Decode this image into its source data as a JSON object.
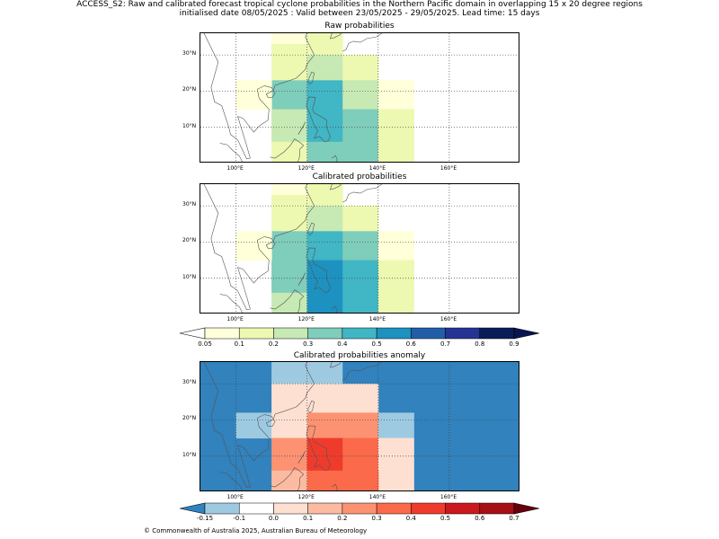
{
  "header": {
    "line1": "ACCESS_S2: Raw and calibrated forecast tropical cyclone probabilities in the Northern Pacific domain in overlapping 15 x 20 degree regions",
    "line2": "initialised date 08/05/2025 :  Valid between 23/05/2025 - 29/05/2025. Lead time: 15 days"
  },
  "footer": "© Commonwealth of Australia 2025, Australian Bureau of Meteorology",
  "chart_data": [
    {
      "type": "heatmap",
      "title": "Raw probabilities",
      "x_tick_labels": [
        "100°E",
        "120°E",
        "140°E",
        "160°E"
      ],
      "y_tick_labels": [
        "10°N",
        "20°N",
        "30°N"
      ],
      "xlim": [
        90,
        180
      ],
      "ylim": [
        0,
        36
      ],
      "cells": [
        {
          "lon": [
            110,
            120
          ],
          "lat": [
            33,
            36
          ],
          "value": 0.07
        },
        {
          "lon": [
            110,
            120
          ],
          "lat": [
            23,
            33
          ],
          "value": 0.15
        },
        {
          "lon": [
            110,
            120
          ],
          "lat": [
            15,
            23
          ],
          "value": 0.35
        },
        {
          "lon": [
            110,
            120
          ],
          "lat": [
            6,
            15
          ],
          "value": 0.25
        },
        {
          "lon": [
            110,
            120
          ],
          "lat": [
            0,
            6
          ],
          "value": 0.15
        },
        {
          "lon": [
            100,
            110
          ],
          "lat": [
            15,
            23
          ],
          "value": 0.07
        },
        {
          "lon": [
            120,
            130
          ],
          "lat": [
            30,
            36
          ],
          "value": 0.15
        },
        {
          "lon": [
            120,
            130
          ],
          "lat": [
            23,
            30
          ],
          "value": 0.25
        },
        {
          "lon": [
            120,
            130
          ],
          "lat": [
            15,
            23
          ],
          "value": 0.45
        },
        {
          "lon": [
            120,
            130
          ],
          "lat": [
            6,
            15
          ],
          "value": 0.45
        },
        {
          "lon": [
            120,
            130
          ],
          "lat": [
            0,
            6
          ],
          "value": 0.35
        },
        {
          "lon": [
            130,
            140
          ],
          "lat": [
            23,
            30
          ],
          "value": 0.15
        },
        {
          "lon": [
            130,
            140
          ],
          "lat": [
            15,
            23
          ],
          "value": 0.25
        },
        {
          "lon": [
            130,
            140
          ],
          "lat": [
            6,
            15
          ],
          "value": 0.35
        },
        {
          "lon": [
            130,
            140
          ],
          "lat": [
            0,
            6
          ],
          "value": 0.35
        },
        {
          "lon": [
            140,
            150
          ],
          "lat": [
            15,
            23
          ],
          "value": 0.07
        },
        {
          "lon": [
            140,
            150
          ],
          "lat": [
            0,
            15
          ],
          "value": 0.15
        }
      ]
    },
    {
      "type": "heatmap",
      "title": "Calibrated probabilities",
      "x_tick_labels": [
        "100°E",
        "120°E",
        "140°E",
        "160°E"
      ],
      "y_tick_labels": [
        "10°N",
        "20°N",
        "30°N"
      ],
      "xlim": [
        90,
        180
      ],
      "ylim": [
        0,
        36
      ],
      "cells": [
        {
          "lon": [
            110,
            120
          ],
          "lat": [
            33,
            36
          ],
          "value": 0.07
        },
        {
          "lon": [
            110,
            120
          ],
          "lat": [
            23,
            33
          ],
          "value": 0.15
        },
        {
          "lon": [
            110,
            120
          ],
          "lat": [
            15,
            23
          ],
          "value": 0.35
        },
        {
          "lon": [
            110,
            120
          ],
          "lat": [
            6,
            15
          ],
          "value": 0.35
        },
        {
          "lon": [
            110,
            120
          ],
          "lat": [
            0,
            6
          ],
          "value": 0.25
        },
        {
          "lon": [
            100,
            110
          ],
          "lat": [
            15,
            23
          ],
          "value": 0.07
        },
        {
          "lon": [
            120,
            130
          ],
          "lat": [
            30,
            36
          ],
          "value": 0.15
        },
        {
          "lon": [
            120,
            130
          ],
          "lat": [
            23,
            30
          ],
          "value": 0.25
        },
        {
          "lon": [
            120,
            130
          ],
          "lat": [
            15,
            23
          ],
          "value": 0.45
        },
        {
          "lon": [
            120,
            130
          ],
          "lat": [
            0,
            15
          ],
          "value": 0.55
        },
        {
          "lon": [
            130,
            140
          ],
          "lat": [
            23,
            30
          ],
          "value": 0.15
        },
        {
          "lon": [
            130,
            140
          ],
          "lat": [
            15,
            23
          ],
          "value": 0.35
        },
        {
          "lon": [
            130,
            140
          ],
          "lat": [
            0,
            15
          ],
          "value": 0.45
        },
        {
          "lon": [
            140,
            150
          ],
          "lat": [
            15,
            23
          ],
          "value": 0.07
        },
        {
          "lon": [
            140,
            150
          ],
          "lat": [
            0,
            15
          ],
          "value": 0.15
        }
      ]
    },
    {
      "type": "heatmap",
      "title": "Calibrated probabilities anomaly",
      "x_tick_labels": [
        "100°E",
        "120°E",
        "140°E",
        "160°E"
      ],
      "y_tick_labels": [
        "10°N",
        "20°N",
        "30°N"
      ],
      "xlim": [
        90,
        180
      ],
      "ylim": [
        0,
        36
      ],
      "background_value": -0.2,
      "cells": [
        {
          "lon": [
            110,
            130
          ],
          "lat": [
            30,
            36
          ],
          "value": -0.12
        },
        {
          "lon": [
            130,
            140
          ],
          "lat": [
            30,
            36
          ],
          "value": -0.2
        },
        {
          "lon": [
            110,
            120
          ],
          "lat": [
            22,
            30
          ],
          "value": 0.05
        },
        {
          "lon": [
            120,
            130
          ],
          "lat": [
            22,
            30
          ],
          "value": 0.05
        },
        {
          "lon": [
            130,
            140
          ],
          "lat": [
            22,
            30
          ],
          "value": 0.05
        },
        {
          "lon": [
            100,
            110
          ],
          "lat": [
            15,
            22
          ],
          "value": -0.12
        },
        {
          "lon": [
            110,
            120
          ],
          "lat": [
            15,
            22
          ],
          "value": 0.05
        },
        {
          "lon": [
            120,
            130
          ],
          "lat": [
            15,
            22
          ],
          "value": 0.25
        },
        {
          "lon": [
            130,
            140
          ],
          "lat": [
            15,
            22
          ],
          "value": 0.25
        },
        {
          "lon": [
            140,
            150
          ],
          "lat": [
            15,
            22
          ],
          "value": -0.12
        },
        {
          "lon": [
            110,
            120
          ],
          "lat": [
            6,
            15
          ],
          "value": 0.25
        },
        {
          "lon": [
            120,
            130
          ],
          "lat": [
            6,
            15
          ],
          "value": 0.4
        },
        {
          "lon": [
            130,
            140
          ],
          "lat": [
            6,
            15
          ],
          "value": 0.33
        },
        {
          "lon": [
            140,
            150
          ],
          "lat": [
            0,
            15
          ],
          "value": 0.0
        },
        {
          "lon": [
            110,
            120
          ],
          "lat": [
            0,
            6
          ],
          "value": 0.12
        },
        {
          "lon": [
            120,
            130
          ],
          "lat": [
            0,
            6
          ],
          "value": 0.33
        },
        {
          "lon": [
            130,
            140
          ],
          "lat": [
            0,
            6
          ],
          "value": 0.33
        }
      ]
    }
  ],
  "colorbars": {
    "probability": {
      "ticks": [
        "0.05",
        "0.1",
        "0.2",
        "0.3",
        "0.4",
        "0.5",
        "0.6",
        "0.7",
        "0.8",
        "0.9"
      ],
      "bounds": [
        0.05,
        0.1,
        0.2,
        0.3,
        0.4,
        0.5,
        0.6,
        0.7,
        0.8,
        0.9
      ],
      "colors": [
        "#ffffd9",
        "#edf8b1",
        "#c7e9b4",
        "#7fcdbb",
        "#41b6c4",
        "#1d91c0",
        "#225ea8",
        "#253494",
        "#081d58"
      ],
      "under_color": "#ffffff",
      "over_color": "#081550"
    },
    "anomaly": {
      "ticks": [
        "-0.15",
        "-0.1",
        "0.0",
        "0.1",
        "0.2",
        "0.3",
        "0.4",
        "0.5",
        "0.6",
        "0.7"
      ],
      "bounds": [
        -0.15,
        -0.1,
        0.0,
        0.1,
        0.2,
        0.3,
        0.4,
        0.5,
        0.6,
        0.7
      ],
      "colors": [
        "#9ecae1",
        "#ffffff",
        "#fee0d2",
        "#fcbba1",
        "#fc9272",
        "#fb6a4a",
        "#ef3b2c",
        "#cb181d",
        "#a50f15"
      ],
      "under_color": "#3182bd",
      "over_color": "#67000d"
    }
  }
}
